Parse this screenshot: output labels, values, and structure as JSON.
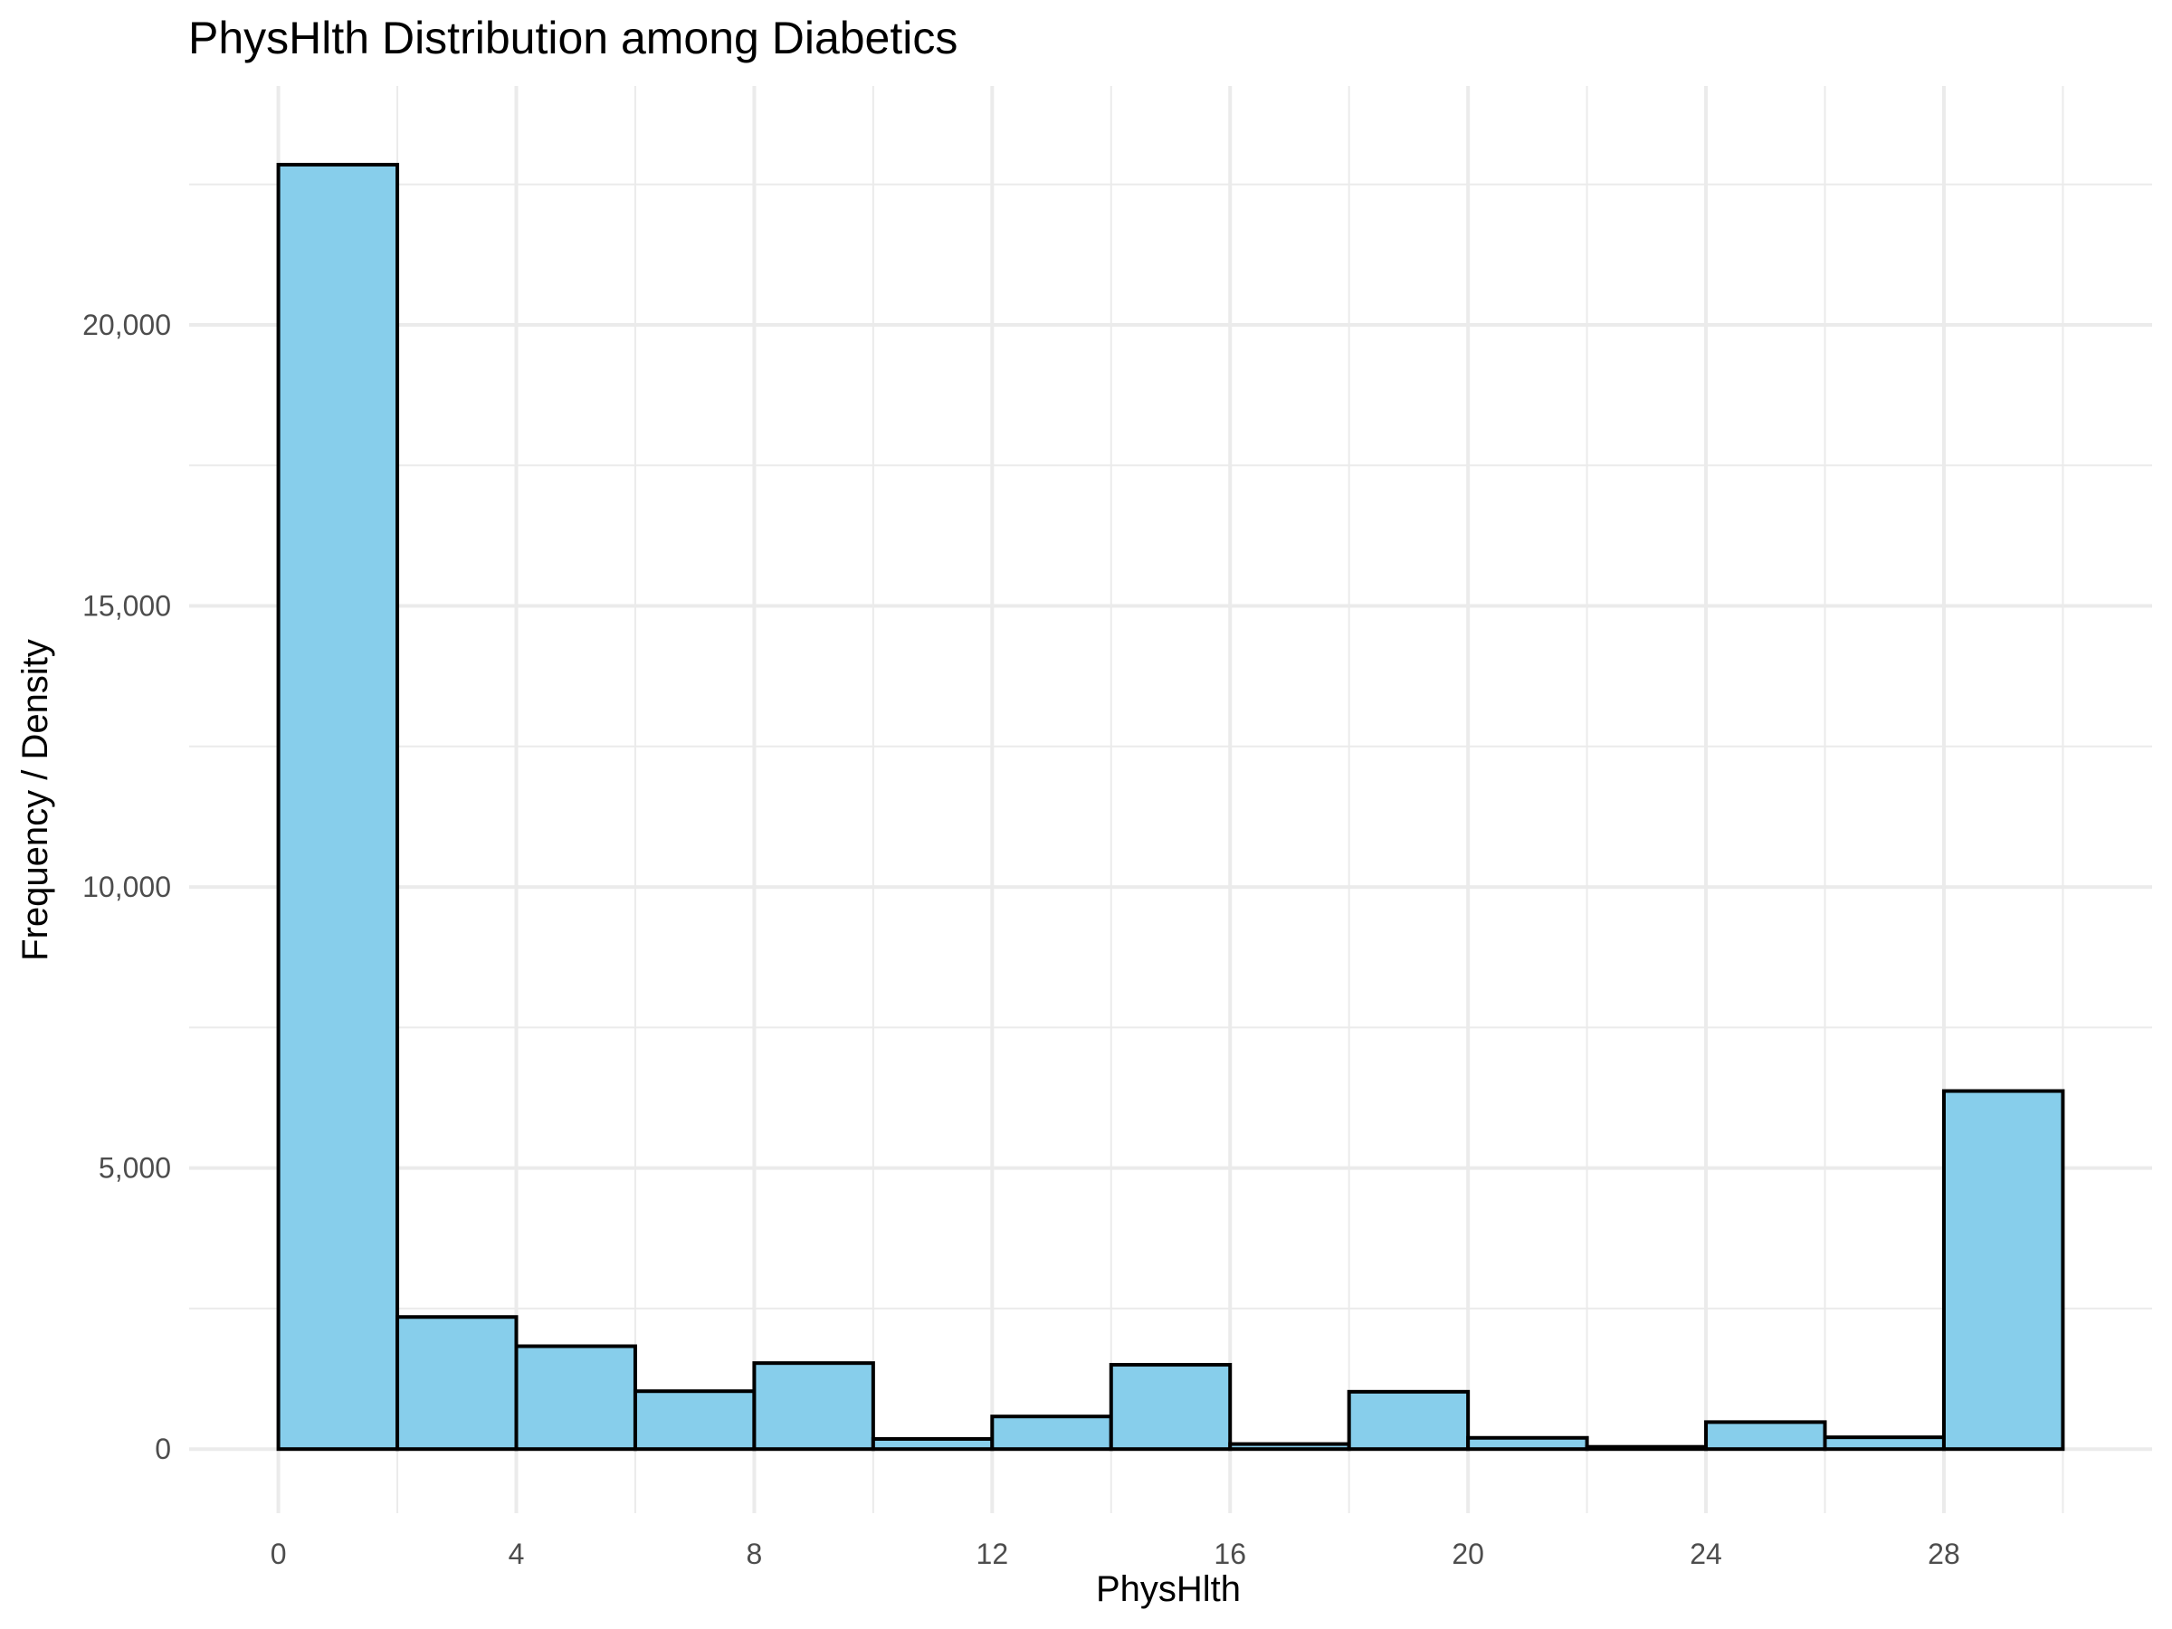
{
  "chart_data": {
    "type": "bar",
    "title": "PhysHlth Distribution among Diabetics",
    "xlabel": "PhysHlth",
    "ylabel": "Frequency / Density",
    "bin_width": 2,
    "bins": [
      {
        "x0": 0,
        "x1": 2,
        "value": 22850
      },
      {
        "x0": 2,
        "x1": 4,
        "value": 2350
      },
      {
        "x0": 4,
        "x1": 6,
        "value": 1830
      },
      {
        "x0": 6,
        "x1": 8,
        "value": 1030
      },
      {
        "x0": 8,
        "x1": 10,
        "value": 1530
      },
      {
        "x0": 10,
        "x1": 12,
        "value": 180
      },
      {
        "x0": 12,
        "x1": 14,
        "value": 580
      },
      {
        "x0": 14,
        "x1": 16,
        "value": 1500
      },
      {
        "x0": 16,
        "x1": 18,
        "value": 90
      },
      {
        "x0": 18,
        "x1": 20,
        "value": 1020
      },
      {
        "x0": 20,
        "x1": 22,
        "value": 200
      },
      {
        "x0": 22,
        "x1": 24,
        "value": 40
      },
      {
        "x0": 24,
        "x1": 26,
        "value": 480
      },
      {
        "x0": 26,
        "x1": 28,
        "value": 210
      },
      {
        "x0": 28,
        "x1": 30,
        "value": 6370
      }
    ],
    "xlim": [
      -1.5,
      31.5
    ],
    "ylim": [
      -1140,
      24250
    ],
    "x_ticks": [
      0,
      4,
      8,
      12,
      16,
      20,
      24,
      28
    ],
    "x_minor_gridlines": [
      2,
      6,
      10,
      14,
      18,
      22,
      26,
      30
    ],
    "y_ticks": [
      0,
      5000,
      10000,
      15000,
      20000
    ],
    "y_tick_labels": [
      "0",
      "5,000",
      "10,000",
      "15,000",
      "20,000"
    ],
    "y_minor_gridlines": [
      2500,
      7500,
      12500,
      17500,
      22500
    ],
    "bar_fill": "#87ceeb",
    "bar_stroke": "#000000",
    "grid": true,
    "legend": "none"
  }
}
